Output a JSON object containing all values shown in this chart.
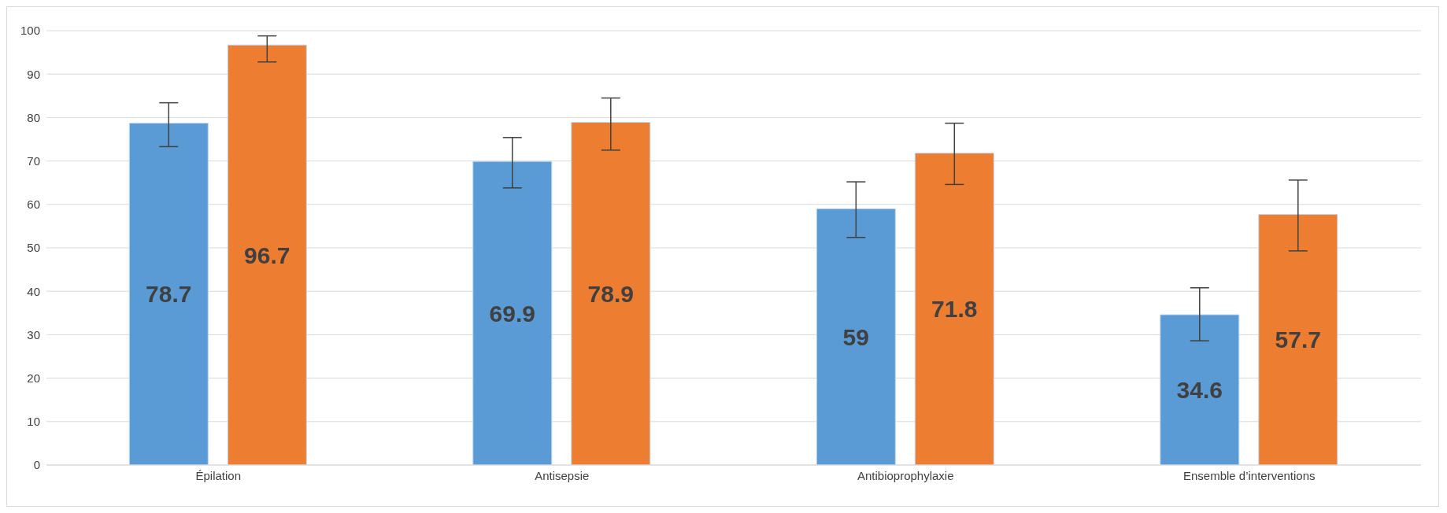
{
  "chart_data": {
    "type": "bar",
    "categories": [
      "Épilation",
      "Antisepsie",
      "Antibioprophylaxie",
      "Ensemble d’interventions"
    ],
    "series": [
      {
        "color": "#5b9bd5",
        "values": [
          78.7,
          69.9,
          59,
          34.6
        ],
        "errors": [
          [
            73.3,
            83.4
          ],
          [
            63.8,
            75.4
          ],
          [
            52.4,
            65.2
          ],
          [
            28.6,
            40.8
          ]
        ]
      },
      {
        "color": "#ed7d31",
        "values": [
          96.7,
          78.9,
          71.8,
          57.7
        ],
        "errors": [
          [
            92.8,
            98.8
          ],
          [
            72.5,
            84.5
          ],
          [
            64.6,
            78.7
          ],
          [
            49.3,
            65.6
          ]
        ]
      }
    ],
    "ylim": [
      0,
      100
    ],
    "yticks": [
      0,
      10,
      20,
      30,
      40,
      50,
      60,
      70,
      80,
      90,
      100
    ],
    "grid": "y",
    "data_labels": true,
    "legend": false
  }
}
